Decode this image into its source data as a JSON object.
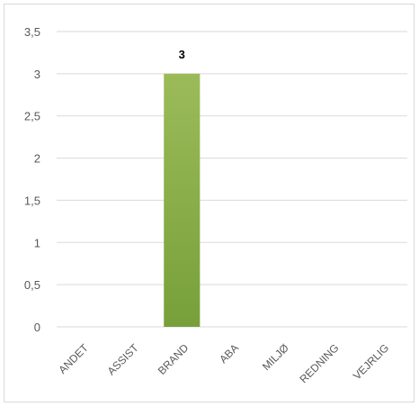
{
  "chart_data": {
    "type": "bar",
    "categories": [
      "ANDET",
      "ASSIST",
      "BRAND",
      "ABA",
      "MILJØ",
      "REDNING",
      "VEJRLIG"
    ],
    "values": [
      0,
      0,
      3,
      0,
      0,
      0,
      0
    ],
    "data_labels": [
      "",
      "",
      "3",
      "",
      "",
      "",
      ""
    ],
    "title": "",
    "xlabel": "",
    "ylabel": "",
    "ylim": [
      0,
      3.5
    ],
    "yticks": [
      "0",
      "0,5",
      "1",
      "1,5",
      "2",
      "2,5",
      "3",
      "3,5"
    ],
    "grid": true,
    "legend": "none",
    "bar_color_top": "#9bbb59",
    "bar_color_bottom": "#77a03a",
    "gridline_color": "#d9d9d9",
    "tick_color": "#595959"
  }
}
